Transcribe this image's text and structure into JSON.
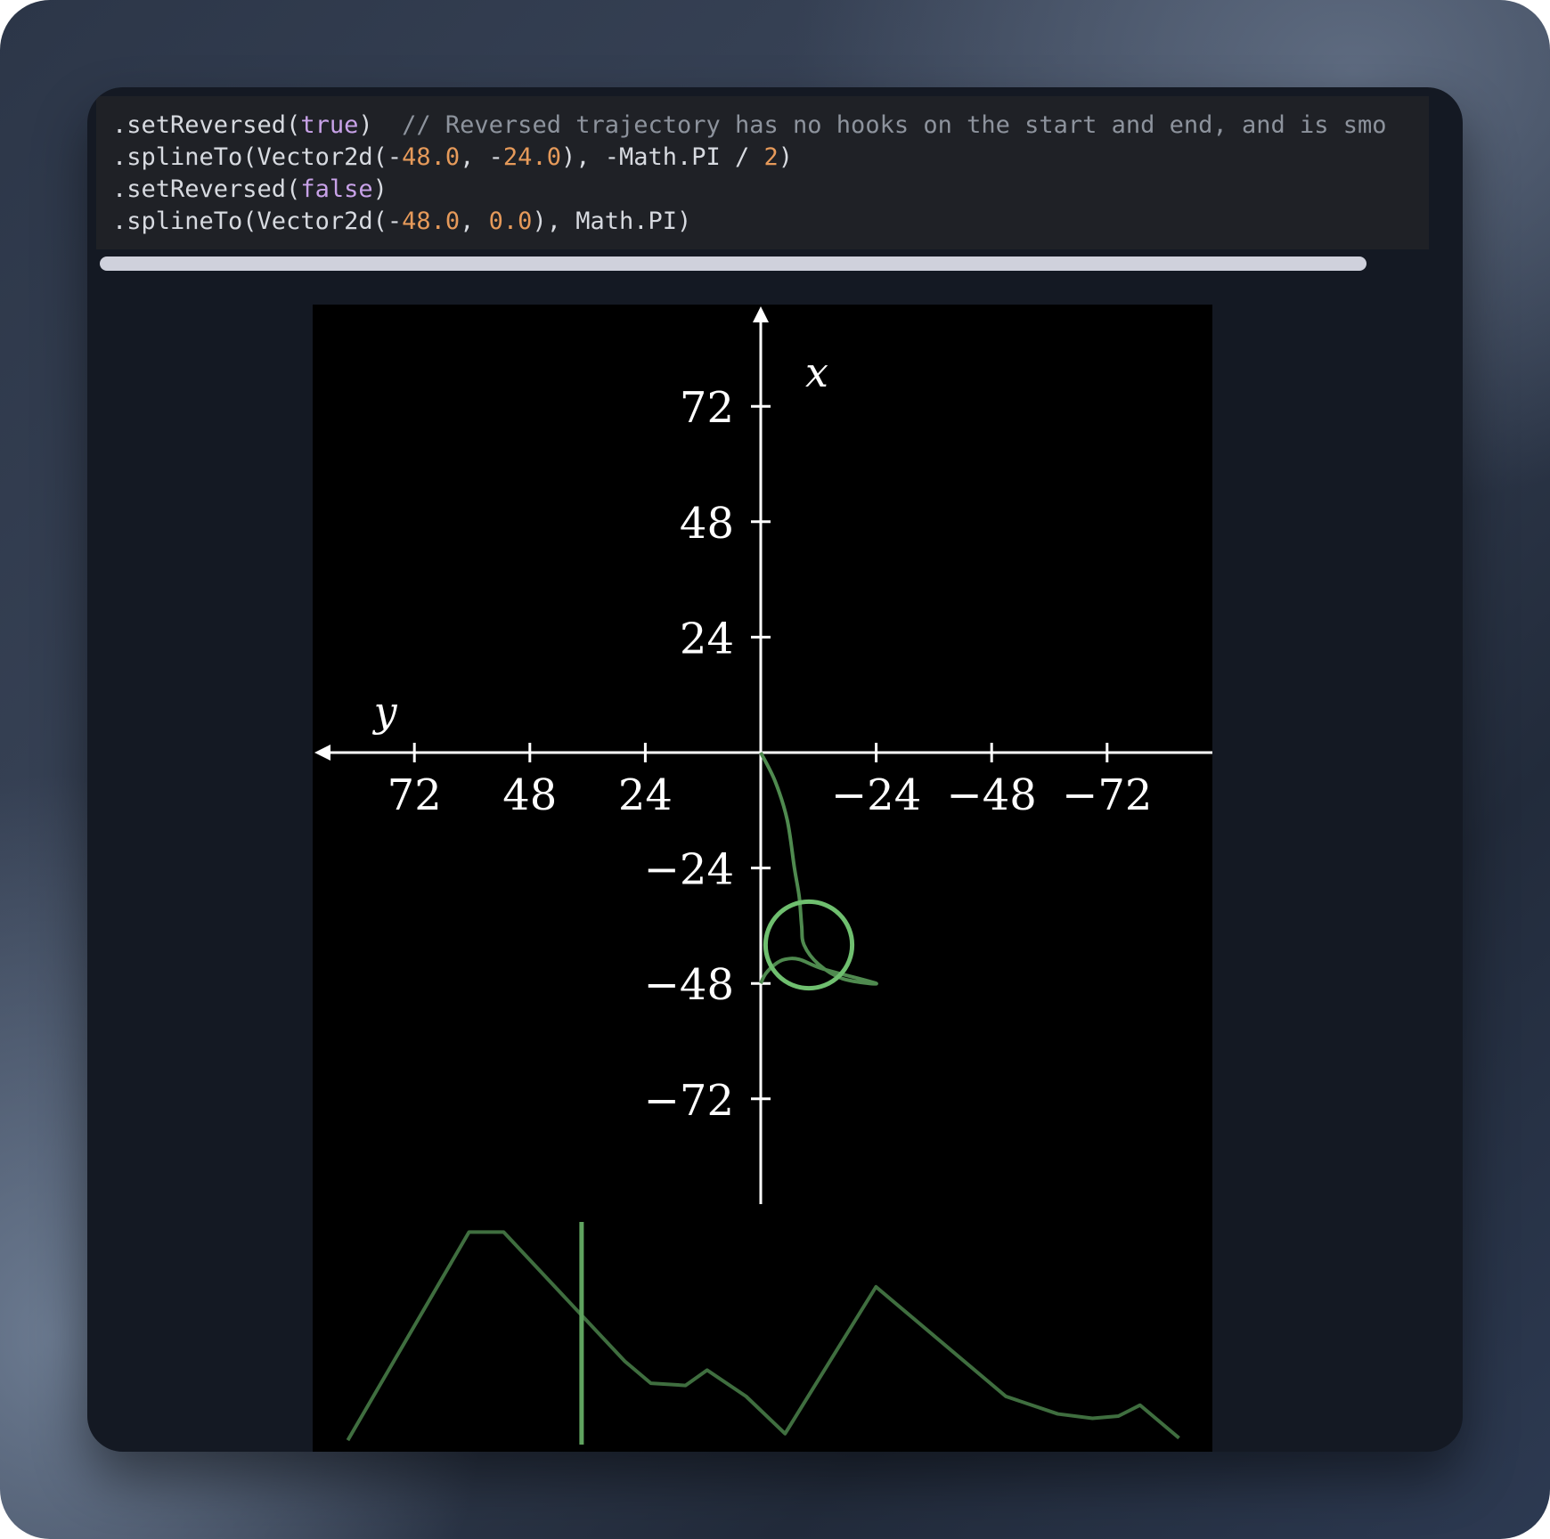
{
  "code": {
    "lines": [
      [
        {
          "t": ".setReversed(",
          "c": "plain"
        },
        {
          "t": "true",
          "c": "kw"
        },
        {
          "t": ")  ",
          "c": "plain"
        },
        {
          "t": "// Reversed trajectory has no hooks on the start and end, and is smo",
          "c": "cm"
        }
      ],
      [
        {
          "t": ".splineTo(Vector2d(-",
          "c": "plain"
        },
        {
          "t": "48.0",
          "c": "num"
        },
        {
          "t": ", -",
          "c": "plain"
        },
        {
          "t": "24.0",
          "c": "num"
        },
        {
          "t": "), -Math.PI / ",
          "c": "plain"
        },
        {
          "t": "2",
          "c": "num"
        },
        {
          "t": ")",
          "c": "plain"
        }
      ],
      [
        {
          "t": ".setReversed(",
          "c": "plain"
        },
        {
          "t": "false",
          "c": "kw"
        },
        {
          "t": ")",
          "c": "plain"
        }
      ],
      [
        {
          "t": ".splineTo(Vector2d(-",
          "c": "plain"
        },
        {
          "t": "48.0",
          "c": "num"
        },
        {
          "t": ", ",
          "c": "plain"
        },
        {
          "t": "0.0",
          "c": "num"
        },
        {
          "t": "), Math.PI)",
          "c": "plain"
        }
      ]
    ]
  },
  "plot": {
    "x_axis_label": "x",
    "y_axis_label": "y",
    "x_ticks": [
      "72",
      "48",
      "24",
      "−24",
      "−48",
      "−72"
    ],
    "y_ticks": [
      "72",
      "48",
      "24",
      "−24",
      "−48",
      "−72"
    ],
    "path_color": "#4f8a4f",
    "circle_color": "#6fbf6f"
  },
  "chart_data": {
    "type": "line",
    "title": "",
    "xlabel": "x",
    "ylabel": "y",
    "x_axis_orientation": "vertical, positive up",
    "y_axis_orientation": "horizontal, positive left",
    "xlim": [
      -84,
      84
    ],
    "ylim": [
      -84,
      84
    ],
    "x_ticks": [
      72,
      48,
      24,
      -24,
      -48,
      -72
    ],
    "y_ticks": [
      72,
      48,
      24,
      -24,
      -48,
      -72
    ],
    "series": [
      {
        "points": [
          {
            "x": 0,
            "y": 0
          },
          {
            "x": -6,
            "y": -3
          },
          {
            "x": -14,
            "y": -5.5
          },
          {
            "x": -24,
            "y": -7
          },
          {
            "x": -30,
            "y": -8
          },
          {
            "x": -36,
            "y": -8.5
          },
          {
            "x": -40,
            "y": -9
          },
          {
            "x": -44,
            "y": -12
          },
          {
            "x": -47,
            "y": -17
          },
          {
            "x": -48,
            "y": -24
          },
          {
            "x": -45,
            "y": -13
          },
          {
            "x": -43,
            "y": -8
          },
          {
            "x": -43,
            "y": -5
          },
          {
            "x": -44,
            "y": -3
          },
          {
            "x": -46,
            "y": -1
          },
          {
            "x": -48,
            "y": 0
          }
        ]
      }
    ],
    "circle": {
      "center_x": -40,
      "center_y": -10,
      "radius": 9
    }
  },
  "velocity_trace": {
    "points": [
      [
        0.02,
        0.02
      ],
      [
        0.16,
        0.97
      ],
      [
        0.2,
        0.97
      ],
      [
        0.34,
        0.38
      ],
      [
        0.37,
        0.28
      ],
      [
        0.41,
        0.27
      ],
      [
        0.435,
        0.34
      ],
      [
        0.48,
        0.22
      ],
      [
        0.525,
        0.05
      ],
      [
        0.63,
        0.72
      ],
      [
        0.78,
        0.22
      ],
      [
        0.84,
        0.14
      ],
      [
        0.88,
        0.12
      ],
      [
        0.91,
        0.13
      ],
      [
        0.935,
        0.18
      ],
      [
        0.98,
        0.03
      ]
    ],
    "cursor_time": 0.29
  }
}
